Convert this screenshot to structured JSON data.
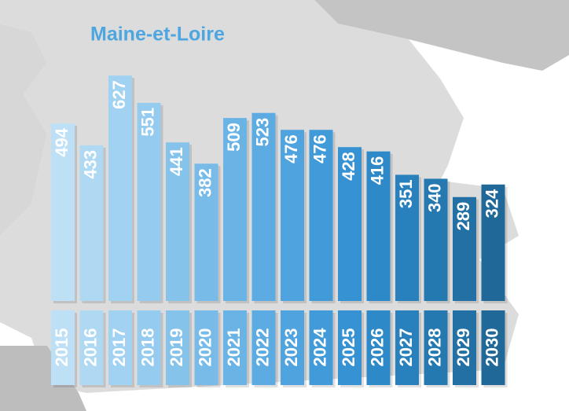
{
  "chart_data": {
    "type": "bar",
    "title": "Maine-et-Loire",
    "categories": [
      "2015",
      "2016",
      "2017",
      "2018",
      "2019",
      "2020",
      "2021",
      "2022",
      "2023",
      "2024",
      "2025",
      "2026",
      "2027",
      "2028",
      "2029",
      "2030"
    ],
    "values": [
      494,
      433,
      627,
      551,
      441,
      382,
      509,
      523,
      476,
      476,
      428,
      416,
      351,
      340,
      289,
      324
    ],
    "colors": [
      "#bde0f6",
      "#afd9f3",
      "#a2d2f1",
      "#94cbee",
      "#86c3eb",
      "#78bbe8",
      "#6ab3e5",
      "#5cabe2",
      "#4fa3de",
      "#429bd9",
      "#3692d2",
      "#2d89c8",
      "#2881bd",
      "#2579b1",
      "#2270a4",
      "#1f6897"
    ]
  }
}
